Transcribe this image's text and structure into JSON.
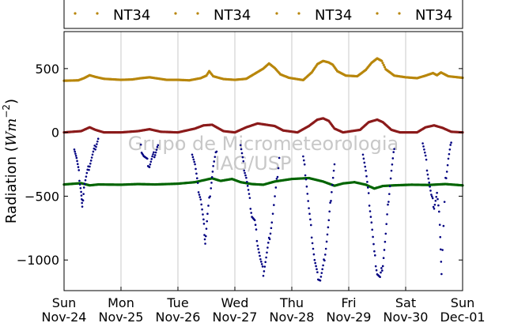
{
  "chart_data": {
    "type": "scatter",
    "title": "",
    "ylabel": "Radiation (Wm⁻²)",
    "ylabel_parts": {
      "prefix": "Radiation (",
      "unit": "Wm",
      "exponent": "−2",
      "suffix": ")"
    },
    "xlabel": "",
    "xlim": [
      0,
      7
    ],
    "ylim": [
      -1240,
      790
    ],
    "yticks": [
      500,
      0,
      -500,
      -1000
    ],
    "ytick_labels": [
      "500",
      "0",
      "−500",
      "−1000"
    ],
    "xticks": [
      0,
      1,
      2,
      3,
      4,
      5,
      6,
      7
    ],
    "xtick_labels": [
      {
        "day": "Sun",
        "date": "Nov-24"
      },
      {
        "day": "Mon",
        "date": "Nov-25"
      },
      {
        "day": "Tue",
        "date": "Nov-26"
      },
      {
        "day": "Wed",
        "date": "Nov-27"
      },
      {
        "day": "Thu",
        "date": "Nov-28"
      },
      {
        "day": "Fri",
        "date": "Nov-29"
      },
      {
        "day": "Sat",
        "date": "Nov-30"
      },
      {
        "day": "Sun",
        "date": "Dec-01"
      }
    ],
    "grid": "vertical",
    "legend_placement": "top",
    "legend": [
      "NT34",
      "NT34",
      "NT34",
      "NT34"
    ],
    "watermark": [
      "Grupo de Micrometeorologia",
      "IAG/USP"
    ],
    "series": [
      {
        "color": "#b8860b",
        "points": [
          [
            0,
            405
          ],
          [
            0.25,
            408
          ],
          [
            0.35,
            425
          ],
          [
            0.45,
            448
          ],
          [
            0.55,
            435
          ],
          [
            0.7,
            420
          ],
          [
            1,
            412
          ],
          [
            1.2,
            415
          ],
          [
            1.35,
            425
          ],
          [
            1.5,
            432
          ],
          [
            1.65,
            422
          ],
          [
            1.8,
            412
          ],
          [
            2,
            412
          ],
          [
            2.2,
            408
          ],
          [
            2.4,
            425
          ],
          [
            2.5,
            445
          ],
          [
            2.55,
            480
          ],
          [
            2.62,
            440
          ],
          [
            2.8,
            418
          ],
          [
            3,
            412
          ],
          [
            3.2,
            420
          ],
          [
            3.35,
            460
          ],
          [
            3.5,
            500
          ],
          [
            3.6,
            540
          ],
          [
            3.7,
            505
          ],
          [
            3.8,
            455
          ],
          [
            3.95,
            428
          ],
          [
            4.2,
            410
          ],
          [
            4.35,
            470
          ],
          [
            4.45,
            535
          ],
          [
            4.55,
            560
          ],
          [
            4.65,
            548
          ],
          [
            4.72,
            530
          ],
          [
            4.8,
            480
          ],
          [
            4.95,
            445
          ],
          [
            5.15,
            440
          ],
          [
            5.3,
            490
          ],
          [
            5.4,
            545
          ],
          [
            5.5,
            580
          ],
          [
            5.58,
            560
          ],
          [
            5.65,
            495
          ],
          [
            5.8,
            445
          ],
          [
            6,
            432
          ],
          [
            6.2,
            425
          ],
          [
            6.35,
            445
          ],
          [
            6.48,
            465
          ],
          [
            6.55,
            448
          ],
          [
            6.62,
            470
          ],
          [
            6.75,
            440
          ],
          [
            7,
            428
          ]
        ]
      },
      {
        "color": "#006400",
        "points": [
          [
            0,
            -408
          ],
          [
            0.3,
            -398
          ],
          [
            0.45,
            -415
          ],
          [
            0.6,
            -408
          ],
          [
            1,
            -410
          ],
          [
            1.3,
            -405
          ],
          [
            1.6,
            -408
          ],
          [
            2,
            -402
          ],
          [
            2.3,
            -390
          ],
          [
            2.6,
            -360
          ],
          [
            2.75,
            -380
          ],
          [
            2.95,
            -365
          ],
          [
            3.1,
            -390
          ],
          [
            3.3,
            -405
          ],
          [
            3.5,
            -410
          ],
          [
            3.7,
            -385
          ],
          [
            4,
            -365
          ],
          [
            4.3,
            -358
          ],
          [
            4.55,
            -385
          ],
          [
            4.75,
            -418
          ],
          [
            4.9,
            -400
          ],
          [
            5.1,
            -390
          ],
          [
            5.3,
            -410
          ],
          [
            5.45,
            -440
          ],
          [
            5.6,
            -420
          ],
          [
            5.8,
            -415
          ],
          [
            6.1,
            -410
          ],
          [
            6.4,
            -412
          ],
          [
            6.7,
            -405
          ],
          [
            7,
            -415
          ]
        ]
      },
      {
        "color": "#000080",
        "points": [
          [
            0.18,
            -110
          ],
          [
            0.22,
            -200
          ],
          [
            0.26,
            -320
          ],
          [
            0.3,
            -460
          ],
          [
            0.32,
            -600
          ],
          [
            0.35,
            -420
          ],
          [
            0.4,
            -330
          ],
          [
            0.45,
            -250
          ],
          [
            0.5,
            -180
          ],
          [
            0.55,
            -110
          ],
          [
            0.6,
            -50
          ],
          [
            1.35,
            -120
          ],
          [
            1.4,
            -180
          ],
          [
            1.45,
            -220
          ],
          [
            1.5,
            -260
          ],
          [
            1.55,
            -200
          ],
          [
            1.6,
            -160
          ],
          [
            1.65,
            -100
          ],
          [
            2.25,
            -150
          ],
          [
            2.3,
            -250
          ],
          [
            2.35,
            -420
          ],
          [
            2.4,
            -520
          ],
          [
            2.45,
            -700
          ],
          [
            2.48,
            -860
          ],
          [
            2.52,
            -650
          ],
          [
            2.58,
            -420
          ],
          [
            2.62,
            -270
          ],
          [
            2.68,
            -150
          ],
          [
            3.1,
            -100
          ],
          [
            3.15,
            -250
          ],
          [
            3.2,
            -350
          ],
          [
            3.25,
            -500
          ],
          [
            3.3,
            -650
          ],
          [
            3.35,
            -700
          ],
          [
            3.4,
            -870
          ],
          [
            3.45,
            -1000
          ],
          [
            3.5,
            -1100
          ],
          [
            3.55,
            -980
          ],
          [
            3.6,
            -850
          ],
          [
            3.65,
            -700
          ],
          [
            3.72,
            -450
          ],
          [
            3.78,
            -200
          ],
          [
            4.2,
            -200
          ],
          [
            4.25,
            -350
          ],
          [
            4.3,
            -600
          ],
          [
            4.35,
            -800
          ],
          [
            4.4,
            -1000
          ],
          [
            4.45,
            -1120
          ],
          [
            4.5,
            -1155
          ],
          [
            4.55,
            -1060
          ],
          [
            4.6,
            -900
          ],
          [
            4.65,
            -700
          ],
          [
            4.7,
            -450
          ],
          [
            4.75,
            -250
          ],
          [
            5.25,
            -150
          ],
          [
            5.3,
            -300
          ],
          [
            5.35,
            -500
          ],
          [
            5.4,
            -700
          ],
          [
            5.45,
            -950
          ],
          [
            5.5,
            -1100
          ],
          [
            5.55,
            -1145
          ],
          [
            5.6,
            -1030
          ],
          [
            5.65,
            -800
          ],
          [
            5.7,
            -520
          ],
          [
            5.75,
            -300
          ],
          [
            5.8,
            -130
          ],
          [
            6.3,
            -80
          ],
          [
            6.35,
            -200
          ],
          [
            6.4,
            -350
          ],
          [
            6.45,
            -500
          ],
          [
            6.5,
            -580
          ],
          [
            6.55,
            -480
          ],
          [
            6.6,
            -700
          ],
          [
            6.63,
            -1110
          ],
          [
            6.7,
            -380
          ],
          [
            6.75,
            -200
          ],
          [
            6.8,
            -80
          ]
        ]
      },
      {
        "color": "#8b1a1a",
        "points": [
          [
            0,
            0
          ],
          [
            0.3,
            10
          ],
          [
            0.45,
            40
          ],
          [
            0.55,
            20
          ],
          [
            0.7,
            0
          ],
          [
            1,
            0
          ],
          [
            1.3,
            10
          ],
          [
            1.5,
            25
          ],
          [
            1.7,
            5
          ],
          [
            2,
            0
          ],
          [
            2.3,
            30
          ],
          [
            2.45,
            55
          ],
          [
            2.6,
            60
          ],
          [
            2.8,
            10
          ],
          [
            3,
            0
          ],
          [
            3.2,
            40
          ],
          [
            3.4,
            70
          ],
          [
            3.55,
            60
          ],
          [
            3.7,
            50
          ],
          [
            3.85,
            15
          ],
          [
            4.1,
            0
          ],
          [
            4.3,
            50
          ],
          [
            4.45,
            100
          ],
          [
            4.55,
            110
          ],
          [
            4.65,
            90
          ],
          [
            4.75,
            30
          ],
          [
            4.9,
            0
          ],
          [
            5.2,
            20
          ],
          [
            5.35,
            80
          ],
          [
            5.5,
            100
          ],
          [
            5.6,
            80
          ],
          [
            5.75,
            20
          ],
          [
            5.9,
            0
          ],
          [
            6.2,
            0
          ],
          [
            6.35,
            40
          ],
          [
            6.5,
            55
          ],
          [
            6.65,
            35
          ],
          [
            6.8,
            5
          ],
          [
            7,
            0
          ]
        ]
      }
    ]
  }
}
